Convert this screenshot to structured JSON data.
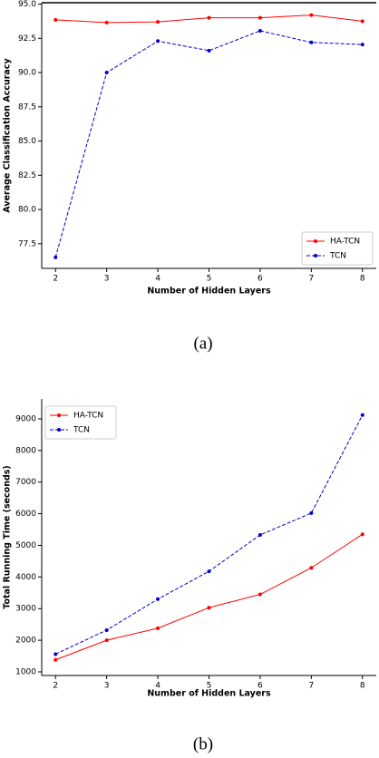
{
  "chart_data": [
    {
      "type": "line",
      "caption": "(a)",
      "x_label": "Number of Hidden Layers",
      "y_label": "Average Classification Accuracy",
      "x": [
        2,
        3,
        4,
        5,
        6,
        7,
        8
      ],
      "series": [
        {
          "name": "HA-TCN",
          "color": "#ff0000",
          "line_style": "solid",
          "values": [
            93.85,
            93.65,
            93.7,
            94.0,
            94.0,
            94.2,
            93.75
          ]
        },
        {
          "name": "TCN",
          "color": "#0000cc",
          "line_style": "dashed",
          "values": [
            76.5,
            90.0,
            92.3,
            91.6,
            93.05,
            92.2,
            92.05
          ]
        }
      ],
      "xlim": [
        1.73,
        8.27
      ],
      "ylim": [
        75.7,
        95.1
      ],
      "xticks": [
        2,
        3,
        4,
        5,
        6,
        7,
        8
      ],
      "yticks": [
        {
          "value": 77.5,
          "label": "77.5"
        },
        {
          "value": 80,
          "label": "80.0"
        },
        {
          "value": 82.5,
          "label": "82.5"
        },
        {
          "value": 85,
          "label": "85.0"
        },
        {
          "value": 87.5,
          "label": "87.5"
        },
        {
          "value": 90,
          "label": "90.0"
        },
        {
          "value": 92.5,
          "label": "92.5"
        },
        {
          "value": 95,
          "label": "95.0"
        }
      ],
      "legend": "lower right"
    },
    {
      "type": "line",
      "caption": "(b)",
      "x_label": "Number of Hidden Layers",
      "y_label": "Total Running Time (seconds)",
      "x": [
        2,
        3,
        4,
        5,
        6,
        7,
        8
      ],
      "series": [
        {
          "name": "HA-TCN",
          "color": "#ff0000",
          "line_style": "solid",
          "values": [
            1380,
            2000,
            2380,
            3030,
            3450,
            4290,
            5350
          ]
        },
        {
          "name": "TCN",
          "color": "#0000cc",
          "line_style": "dashed",
          "values": [
            1560,
            2320,
            3300,
            4180,
            5330,
            6020,
            9120
          ]
        }
      ],
      "xlim": [
        1.73,
        8.27
      ],
      "ylim": [
        885,
        9630
      ],
      "xticks": [
        2,
        3,
        4,
        5,
        6,
        7,
        8
      ],
      "yticks": [
        1000,
        2000,
        3000,
        4000,
        5000,
        6000,
        7000,
        8000,
        9000
      ],
      "legend": "upper left"
    }
  ]
}
